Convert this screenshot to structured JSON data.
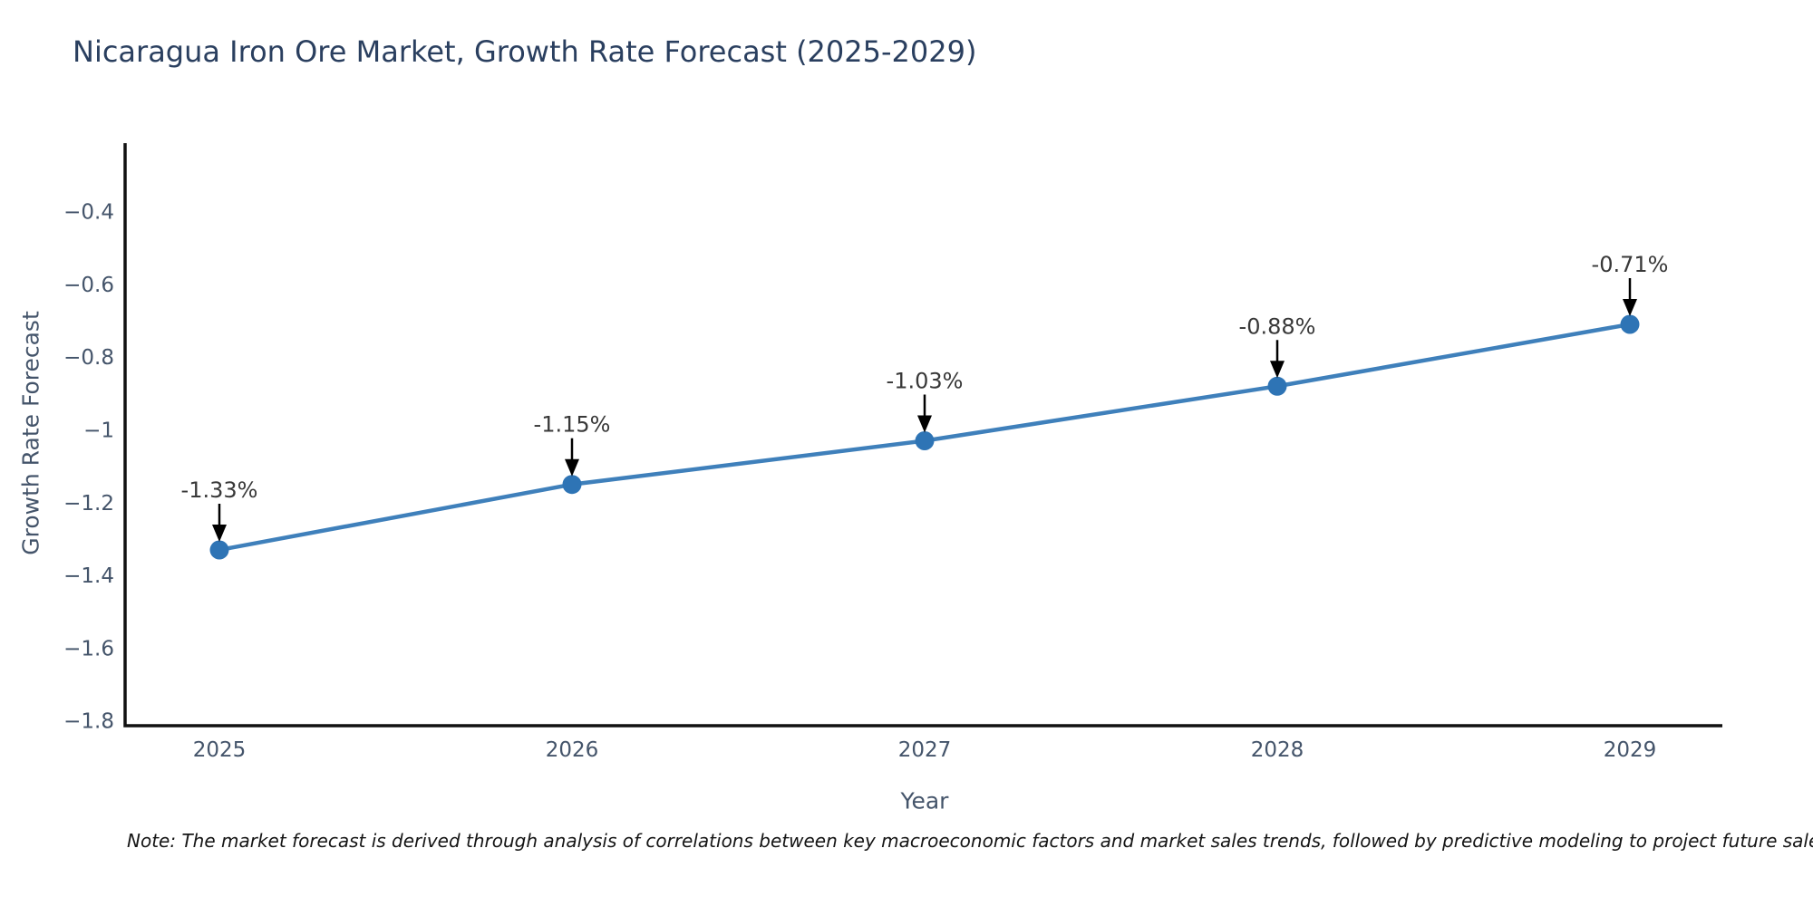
{
  "chart_data": {
    "type": "line",
    "title": "Nicaragua Iron Ore Market, Growth Rate Forecast (2025-2029)",
    "xlabel": "Year",
    "ylabel": "Growth Rate Forecast",
    "categories": [
      "2025",
      "2026",
      "2027",
      "2028",
      "2029"
    ],
    "series": [
      {
        "name": "Growth Rate Forecast",
        "values": [
          -1.33,
          -1.15,
          -1.03,
          -0.88,
          -0.71
        ]
      }
    ],
    "point_labels": [
      "-1.33%",
      "-1.15%",
      "-1.03%",
      "-0.88%",
      "-0.71%"
    ],
    "yticks": {
      "values": [
        -0.4,
        -0.6,
        -0.8,
        -1,
        -1.2,
        -1.4,
        -1.6,
        -1.8
      ],
      "labels": [
        "−0.4",
        "−0.6",
        "−0.8",
        "−1",
        "−1.2",
        "−1.4",
        "−1.6",
        "−1.8"
      ]
    },
    "ylim": [
      -1.85,
      -0.21
    ],
    "grid": false,
    "legend": "none",
    "colors": {
      "line": "#3f80bb",
      "marker": "#2e74b5",
      "axis": "#111111",
      "tick_text": "#44546a",
      "title_text": "#2a3f5f",
      "annotation_text": "#383838",
      "arrow": "#000000"
    }
  },
  "note": "Note: The market forecast is derived through analysis of correlations between key macroeconomic factors and market sales trends, followed by predictive modeling to project future sales."
}
